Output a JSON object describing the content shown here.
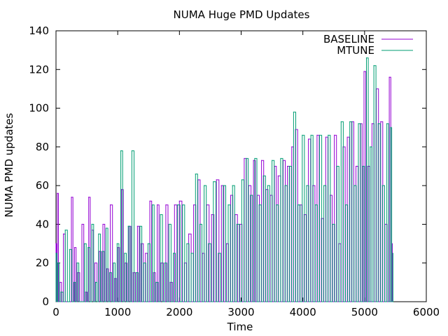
{
  "chart_data": {
    "type": "line",
    "title": "NUMA Huge PMD Updates",
    "xlabel": "Time",
    "ylabel": "NUMA PMD updates",
    "xlim": [
      0,
      6000
    ],
    "ylim": [
      0,
      140
    ],
    "xticks": [
      "0",
      "1000",
      "2000",
      "3000",
      "4000",
      "5000",
      "6000"
    ],
    "yticks": [
      "0",
      "20",
      "40",
      "60",
      "80",
      "100",
      "120",
      "140"
    ],
    "legend_position": "top-right",
    "grid": false,
    "series": [
      {
        "name": "BASELINE",
        "color": "#9400d3",
        "x": [
          0,
          20,
          60,
          120,
          180,
          250,
          300,
          350,
          420,
          480,
          530,
          580,
          630,
          700,
          760,
          820,
          880,
          950,
          1000,
          1060,
          1120,
          1180,
          1250,
          1320,
          1380,
          1450,
          1520,
          1580,
          1640,
          1700,
          1780,
          1850,
          1920,
          2000,
          2080,
          2150,
          2230,
          2300,
          2370,
          2440,
          2520,
          2600,
          2680,
          2760,
          2830,
          2900,
          2980,
          3050,
          3120,
          3200,
          3260,
          3330,
          3400,
          3470,
          3540,
          3600,
          3680,
          3750,
          3820,
          3880,
          3950,
          4020,
          4090,
          4160,
          4230,
          4300,
          4370,
          4440,
          4510,
          4580,
          4650,
          4720,
          4790,
          4860,
          4930,
          4990,
          5050,
          5120,
          5190,
          5260,
          5330,
          5400,
          5450
        ],
        "y": [
          30,
          56,
          10,
          35,
          0,
          54,
          28,
          15,
          40,
          5,
          54,
          37,
          20,
          26,
          40,
          17,
          50,
          12,
          28,
          58,
          20,
          39,
          15,
          39,
          30,
          25,
          52,
          15,
          50,
          20,
          50,
          10,
          50,
          52,
          20,
          35,
          50,
          63,
          25,
          50,
          45,
          63,
          60,
          30,
          55,
          45,
          40,
          74,
          60,
          73,
          55,
          73,
          58,
          55,
          70,
          65,
          73,
          70,
          80,
          89,
          50,
          45,
          84,
          60,
          86,
          43,
          85,
          55,
          86,
          30,
          80,
          85,
          93,
          70,
          92,
          119,
          70,
          92,
          110,
          93,
          40,
          116,
          30
        ]
      },
      {
        "name": "MTUNE",
        "color": "#009e73",
        "x": [
          0,
          30,
          80,
          150,
          220,
          290,
          340,
          400,
          460,
          520,
          580,
          640,
          690,
          750,
          810,
          870,
          930,
          990,
          1050,
          1110,
          1170,
          1230,
          1300,
          1360,
          1420,
          1490,
          1560,
          1620,
          1690,
          1760,
          1830,
          1900,
          1970,
          2050,
          2120,
          2190,
          2260,
          2330,
          2400,
          2470,
          2550,
          2630,
          2710,
          2790,
          2860,
          2930,
          3010,
          3080,
          3150,
          3220,
          3290,
          3360,
          3430,
          3500,
          3570,
          3640,
          3710,
          3780,
          3850,
          3920,
          3990,
          4060,
          4130,
          4200,
          4270,
          4340,
          4410,
          4480,
          4550,
          4620,
          4690,
          4760,
          4830,
          4900,
          4970,
          5030,
          5090,
          5150,
          5220,
          5290,
          5360,
          5420,
          5460
        ],
        "y": [
          25,
          20,
          5,
          37,
          27,
          10,
          20,
          0,
          30,
          28,
          40,
          10,
          35,
          26,
          38,
          15,
          20,
          30,
          78,
          25,
          39,
          78,
          15,
          39,
          20,
          30,
          50,
          10,
          45,
          20,
          40,
          25,
          50,
          50,
          30,
          25,
          66,
          40,
          60,
          30,
          62,
          25,
          60,
          50,
          60,
          40,
          63,
          74,
          55,
          74,
          50,
          65,
          60,
          73,
          50,
          74,
          60,
          70,
          98,
          50,
          86,
          60,
          86,
          50,
          86,
          60,
          86,
          40,
          70,
          93,
          50,
          93,
          60,
          92,
          70,
          126,
          80,
          122,
          92,
          60,
          92,
          90,
          25
        ]
      }
    ]
  }
}
